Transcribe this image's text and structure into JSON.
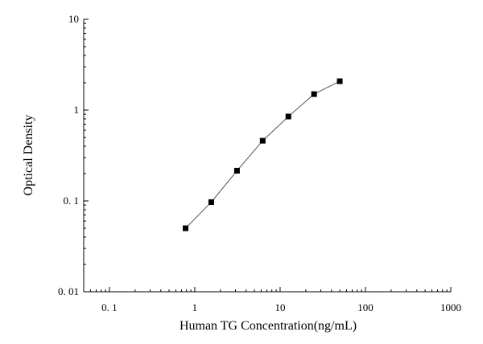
{
  "chart_data": {
    "type": "scatter",
    "title": "",
    "xlabel": "Human TG Concentration(ng/mL)",
    "ylabel": "Optical Density",
    "xscale": "log",
    "yscale": "log",
    "xlim": [
      0.05,
      1000
    ],
    "ylim": [
      0.01,
      10
    ],
    "grid": false,
    "legend": "none",
    "x_ticks": [
      {
        "value": 0.1,
        "label": "0. 1"
      },
      {
        "value": 1,
        "label": "1"
      },
      {
        "value": 10,
        "label": "10"
      },
      {
        "value": 100,
        "label": "100"
      },
      {
        "value": 1000,
        "label": "1000"
      }
    ],
    "y_ticks": [
      {
        "value": 0.01,
        "label": "0. 01"
      },
      {
        "value": 0.1,
        "label": "0. 1"
      },
      {
        "value": 1,
        "label": "1"
      },
      {
        "value": 10,
        "label": "10"
      }
    ],
    "series": [
      {
        "marker": "square",
        "connected": true,
        "color": "#000000",
        "line_color": "#555555",
        "x": [
          0.78,
          1.56,
          3.125,
          6.25,
          12.5,
          25,
          50
        ],
        "y": [
          0.05,
          0.097,
          0.215,
          0.46,
          0.85,
          1.5,
          2.08
        ]
      }
    ]
  }
}
